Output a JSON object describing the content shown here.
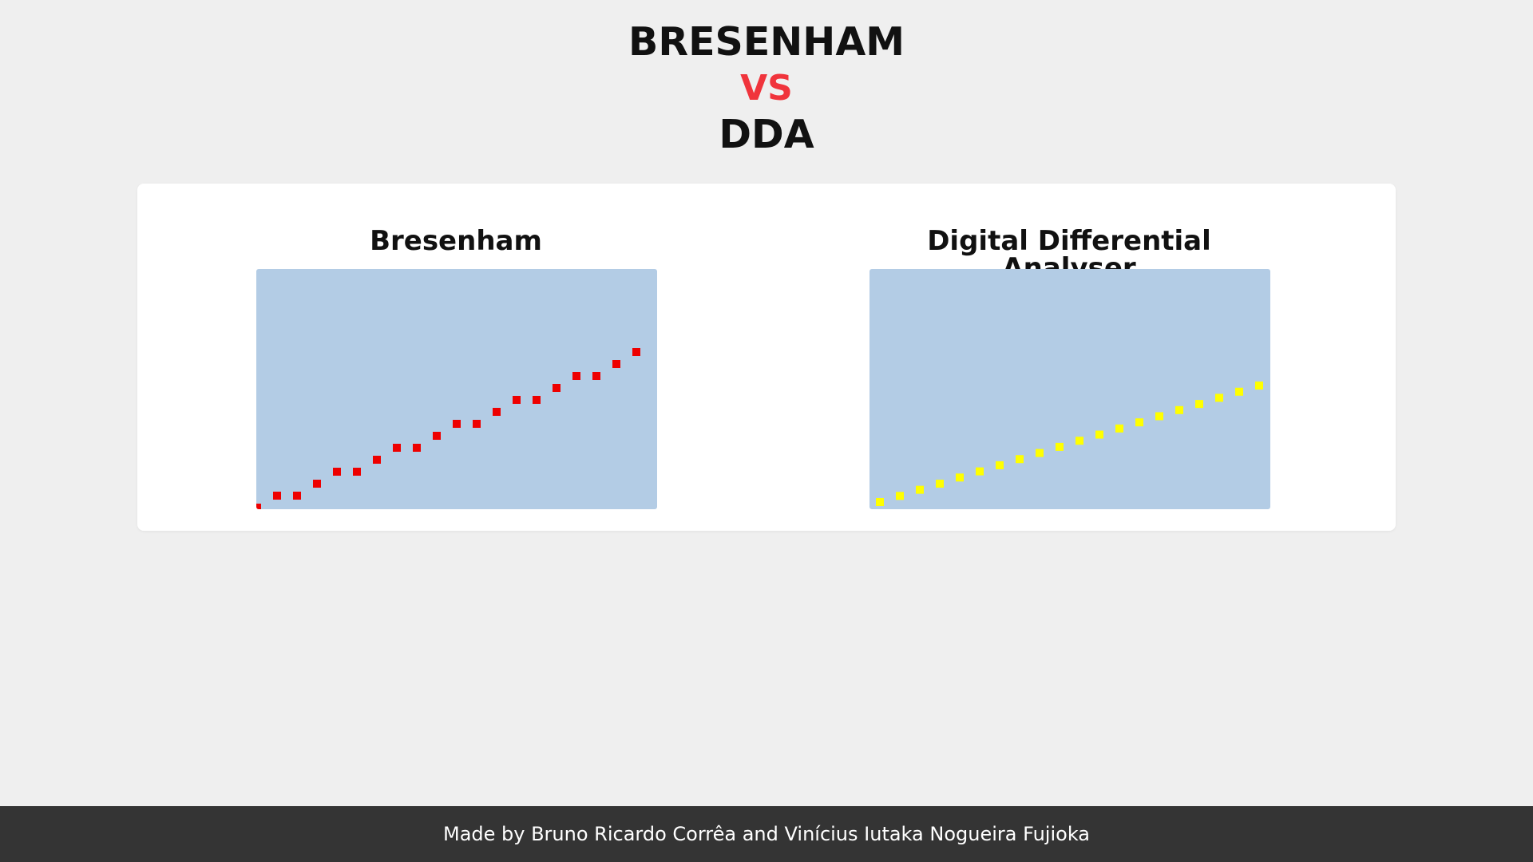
{
  "header": {
    "title_top": "BRESENHAM",
    "title_vs": "VS",
    "title_bottom": "DDA"
  },
  "panels": {
    "left_title": "Bresenham",
    "right_title": "Digital Differential Analyser"
  },
  "footer": {
    "credit": "Made by Bruno Ricardo Corrêa and Vinícius Iutaka Nogueira Fujioka"
  },
  "colors": {
    "accent_vs": "#f0343c",
    "canvas_bg": "#b3cce5",
    "bresenham_pixel": "#ee0000",
    "dda_pixel": "#ffff00"
  },
  "chart_data": [
    {
      "type": "scatter",
      "title": "Bresenham",
      "x": [
        0,
        1,
        2,
        3,
        4,
        5,
        6,
        7,
        8,
        9,
        10,
        11,
        12,
        13,
        14,
        15,
        16,
        17,
        18,
        19
      ],
      "y": [
        0,
        0.5,
        0.5,
        1,
        1.5,
        1.5,
        2,
        2.5,
        2.5,
        3,
        3.5,
        3.5,
        4,
        4.5,
        4.5,
        5,
        5.5,
        5.5,
        6,
        6.5
      ]
    },
    {
      "type": "scatter",
      "title": "Digital Differential Analyser",
      "x": [
        0,
        1,
        2,
        3,
        4,
        5,
        6,
        7,
        8,
        9,
        10,
        11,
        12,
        13,
        14,
        15,
        16,
        17,
        18,
        19
      ],
      "y": [
        0,
        0.4,
        0.8,
        1.2,
        1.6,
        2.0,
        2.4,
        2.8,
        3.2,
        3.6,
        4.0,
        4.4,
        4.8,
        5.2,
        5.6,
        6.0,
        6.4,
        6.8,
        7.2,
        7.6
      ]
    }
  ]
}
